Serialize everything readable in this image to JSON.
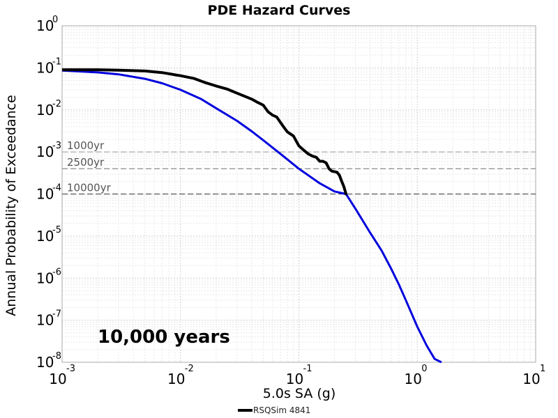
{
  "chart_data": {
    "type": "line",
    "title": "PDE Hazard Curves",
    "xlabel": "5.0s SA (g)",
    "ylabel": "Annual Probability of Exceedance",
    "x_scale": "log",
    "y_scale": "log",
    "xlim": [
      0.001,
      10
    ],
    "ylim": [
      1e-08,
      1
    ],
    "grid": true,
    "legend_position": "bottom-center",
    "x_ticks": [
      {
        "base": "10",
        "exp": "-3"
      },
      {
        "base": "10",
        "exp": "-2"
      },
      {
        "base": "10",
        "exp": "-1"
      },
      {
        "base": "10",
        "exp": "0"
      },
      {
        "base": "10",
        "exp": "1"
      }
    ],
    "y_ticks": [
      {
        "base": "10",
        "exp": "0"
      },
      {
        "base": "10",
        "exp": "-1"
      },
      {
        "base": "10",
        "exp": "-2"
      },
      {
        "base": "10",
        "exp": "-3"
      },
      {
        "base": "10",
        "exp": "-4"
      },
      {
        "base": "10",
        "exp": "-5"
      },
      {
        "base": "10",
        "exp": "-6"
      },
      {
        "base": "10",
        "exp": "-7"
      },
      {
        "base": "10",
        "exp": "-8"
      }
    ],
    "reference_lines": [
      {
        "label": "1000yr",
        "y": 0.001,
        "color": "#aaaaaa"
      },
      {
        "label": "2500yr",
        "y": 0.0004,
        "color": "#888888"
      },
      {
        "label": "10000yr",
        "y": 0.0001,
        "color": "#555555"
      }
    ],
    "annotation": "10,000 years",
    "series": [
      {
        "name": "RSQSim 4841",
        "color": "#000000",
        "x": [
          0.001,
          0.002,
          0.003,
          0.005,
          0.007,
          0.01,
          0.013,
          0.016,
          0.02,
          0.025,
          0.03,
          0.035,
          0.04,
          0.045,
          0.05,
          0.055,
          0.06,
          0.065,
          0.07,
          0.075,
          0.08,
          0.09,
          0.1,
          0.11,
          0.12,
          0.13,
          0.14,
          0.15,
          0.16,
          0.17,
          0.18,
          0.19,
          0.2,
          0.21,
          0.22,
          0.23,
          0.24,
          0.25,
          0.255
        ],
        "y": [
          0.09,
          0.09,
          0.088,
          0.084,
          0.077,
          0.065,
          0.056,
          0.045,
          0.037,
          0.031,
          0.025,
          0.021,
          0.018,
          0.015,
          0.013,
          0.009,
          0.0075,
          0.0068,
          0.005,
          0.0038,
          0.003,
          0.0024,
          0.0014,
          0.0011,
          0.0009,
          0.0008,
          0.00075,
          0.0006,
          0.0006,
          0.00055,
          0.0004,
          0.00035,
          0.00034,
          0.00033,
          0.00028,
          0.0002,
          0.00015,
          0.0001,
          0.0001
        ]
      },
      {
        "name": "",
        "color": "#0000dd",
        "x": [
          0.001,
          0.002,
          0.003,
          0.005,
          0.007,
          0.01,
          0.015,
          0.02,
          0.03,
          0.04,
          0.05,
          0.07,
          0.1,
          0.15,
          0.2,
          0.25,
          0.3,
          0.4,
          0.5,
          0.6,
          0.7,
          0.8,
          1.0,
          1.2,
          1.4,
          1.6
        ],
        "y": [
          0.086,
          0.078,
          0.07,
          0.055,
          0.043,
          0.03,
          0.018,
          0.011,
          0.0055,
          0.0031,
          0.0019,
          0.0009,
          0.0004,
          0.00018,
          0.000115,
          0.0001,
          4.5e-05,
          1.2e-05,
          4.5e-06,
          1.7e-06,
          7e-07,
          3e-07,
          7e-08,
          2.5e-08,
          1.2e-08,
          1e-08
        ]
      }
    ]
  }
}
